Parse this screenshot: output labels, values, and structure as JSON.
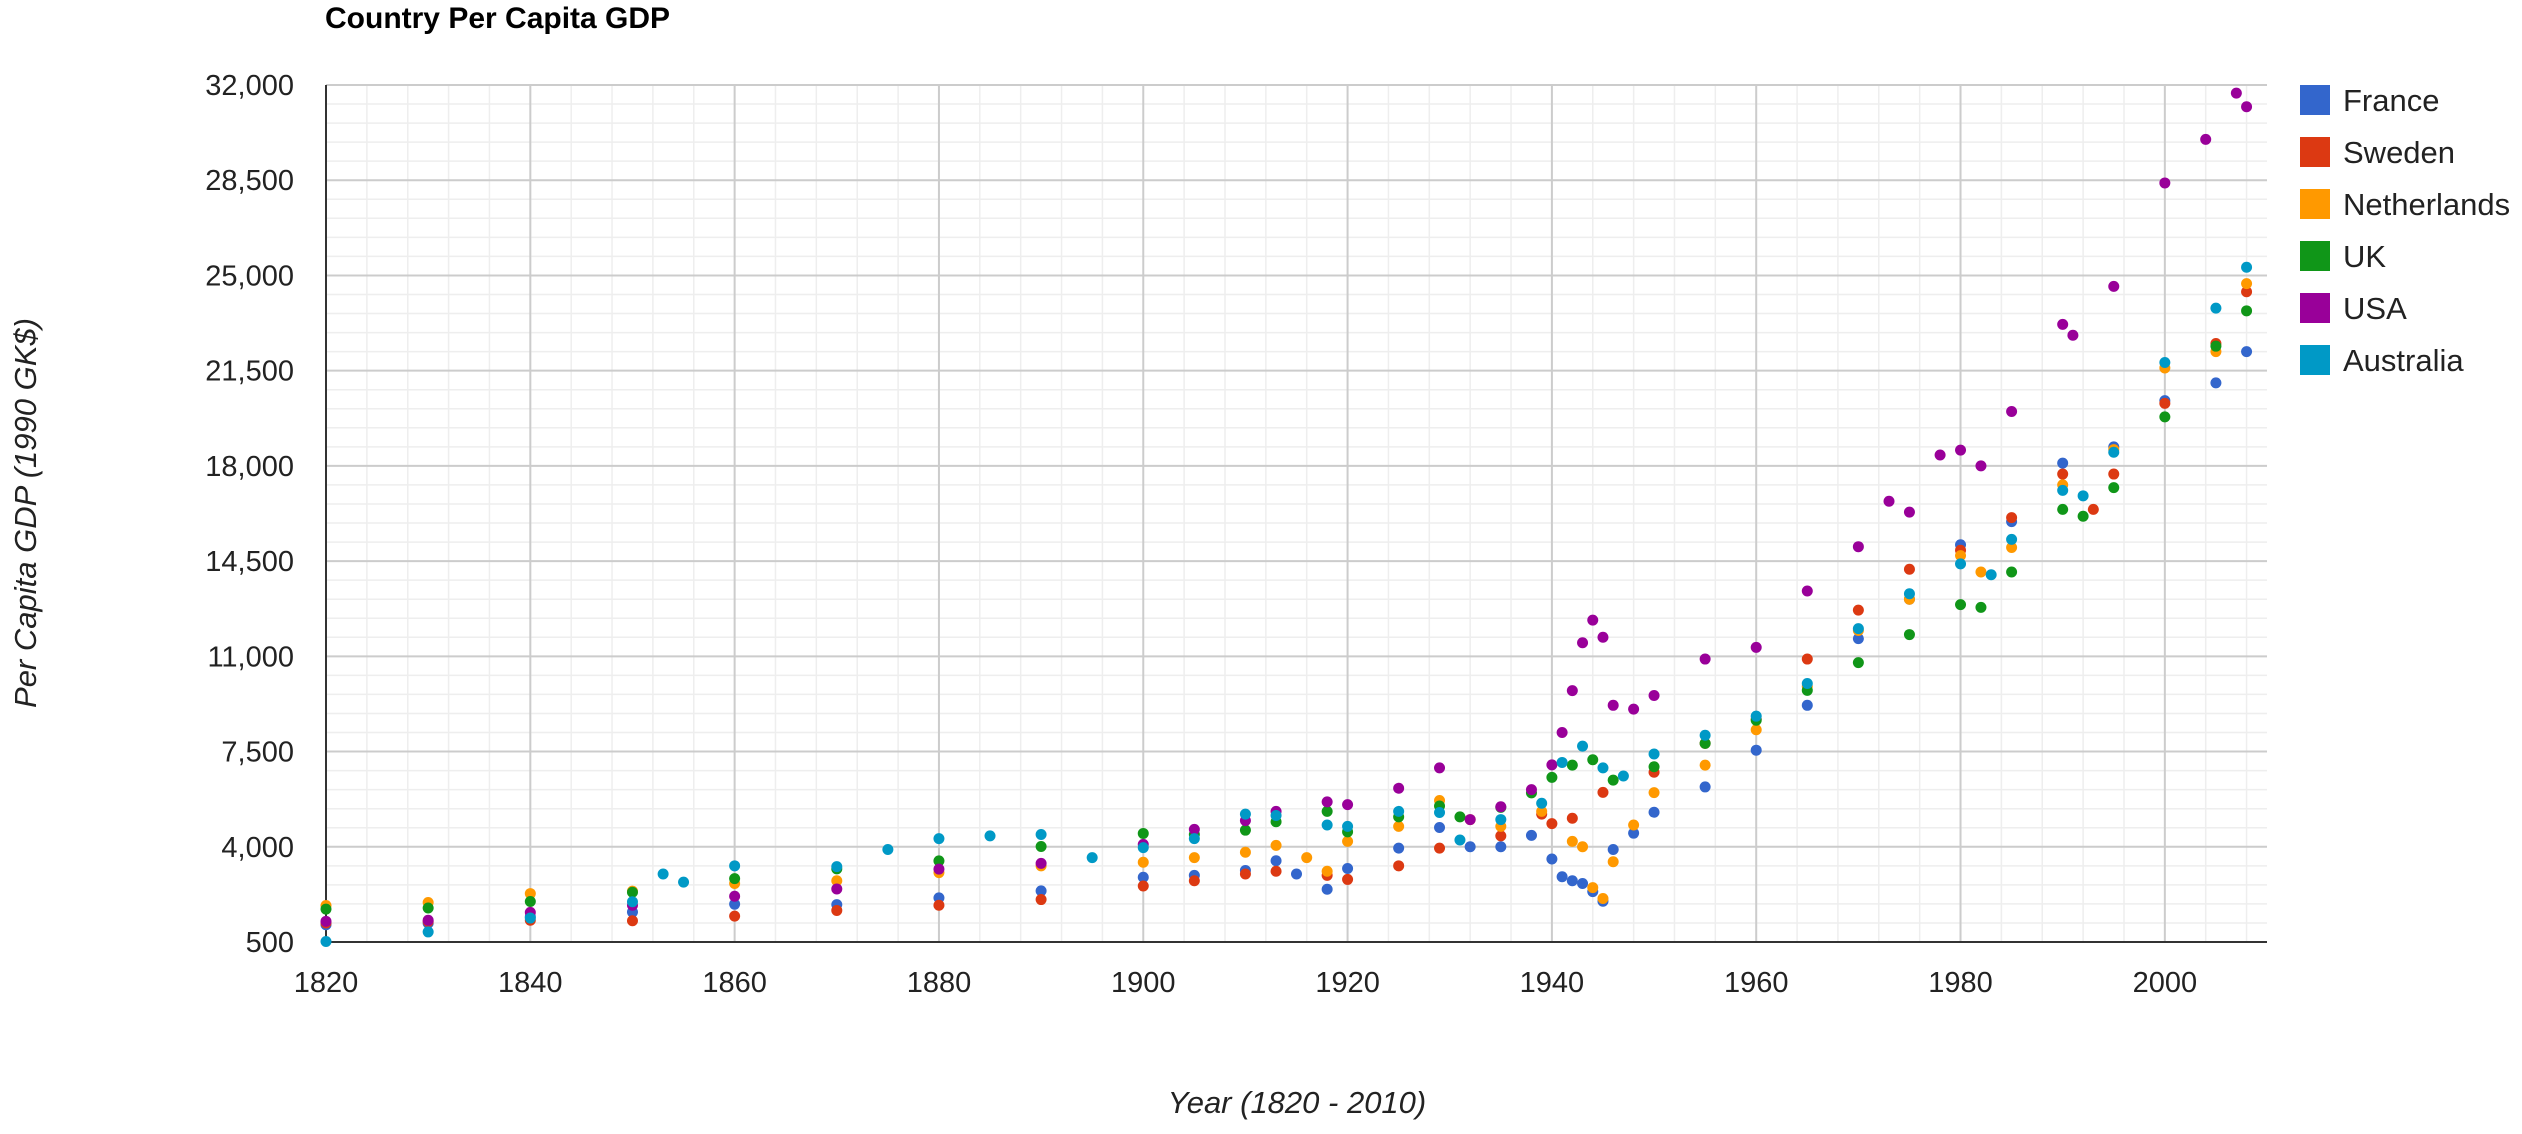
{
  "chart_data": {
    "type": "scatter",
    "title": "Country Per Capita GDP",
    "xlabel": "Year (1820 - 2010)",
    "ylabel": "Per Capita GDP (1990 GK$)",
    "xlim": [
      1820,
      2010
    ],
    "ylim": [
      500,
      32000
    ],
    "x_ticks": [
      1820,
      1840,
      1860,
      1880,
      1900,
      1920,
      1940,
      1960,
      1980,
      2000
    ],
    "y_ticks": [
      500,
      4000,
      7500,
      11000,
      14500,
      18000,
      21500,
      25000,
      28500,
      32000
    ],
    "x_tick_labels": [
      "1820",
      "1840",
      "1860",
      "1880",
      "1900",
      "1920",
      "1940",
      "1960",
      "1980",
      "2000"
    ],
    "y_tick_labels": [
      "500",
      "4,000",
      "7,500",
      "11,000",
      "14,500",
      "18,000",
      "21,500",
      "25,000",
      "28,500",
      "32,000"
    ],
    "grid": true,
    "legend_position": "right",
    "series": [
      {
        "name": "France",
        "color": "#3366cc",
        "points": [
          [
            1820,
            1135
          ],
          [
            1830,
            1190
          ],
          [
            1840,
            1430
          ],
          [
            1850,
            1600
          ],
          [
            1860,
            1890
          ],
          [
            1870,
            1875
          ],
          [
            1880,
            2120
          ],
          [
            1890,
            2380
          ],
          [
            1900,
            2880
          ],
          [
            1905,
            2950
          ],
          [
            1910,
            3130
          ],
          [
            1913,
            3485
          ],
          [
            1915,
            3000
          ],
          [
            1918,
            2440
          ],
          [
            1920,
            3200
          ],
          [
            1925,
            3950
          ],
          [
            1929,
            4710
          ],
          [
            1932,
            4000
          ],
          [
            1935,
            4000
          ],
          [
            1938,
            4420
          ],
          [
            1940,
            3550
          ],
          [
            1941,
            2900
          ],
          [
            1942,
            2750
          ],
          [
            1943,
            2650
          ],
          [
            1944,
            2350
          ],
          [
            1945,
            2000
          ],
          [
            1946,
            3900
          ],
          [
            1948,
            4500
          ],
          [
            1950,
            5270
          ],
          [
            1955,
            6200
          ],
          [
            1960,
            7550
          ],
          [
            1965,
            9200
          ],
          [
            1970,
            11650
          ],
          [
            1975,
            13100
          ],
          [
            1980,
            15100
          ],
          [
            1985,
            15950
          ],
          [
            1990,
            18100
          ],
          [
            1995,
            18700
          ],
          [
            2000,
            20400
          ],
          [
            2005,
            21050
          ],
          [
            2008,
            22200
          ]
        ]
      },
      {
        "name": "Sweden",
        "color": "#dc3912",
        "points": [
          [
            1820,
            1200
          ],
          [
            1830,
            1250
          ],
          [
            1840,
            1300
          ],
          [
            1850,
            1280
          ],
          [
            1860,
            1450
          ],
          [
            1870,
            1660
          ],
          [
            1880,
            1850
          ],
          [
            1890,
            2060
          ],
          [
            1900,
            2560
          ],
          [
            1905,
            2750
          ],
          [
            1910,
            3000
          ],
          [
            1913,
            3100
          ],
          [
            1918,
            2950
          ],
          [
            1920,
            2800
          ],
          [
            1925,
            3300
          ],
          [
            1929,
            3950
          ],
          [
            1935,
            4400
          ],
          [
            1939,
            5200
          ],
          [
            1940,
            4850
          ],
          [
            1942,
            5050
          ],
          [
            1945,
            6000
          ],
          [
            1950,
            6740
          ],
          [
            1955,
            7800
          ],
          [
            1960,
            8690
          ],
          [
            1965,
            10900
          ],
          [
            1970,
            12700
          ],
          [
            1975,
            14200
          ],
          [
            1980,
            14900
          ],
          [
            1985,
            16100
          ],
          [
            1990,
            17700
          ],
          [
            1993,
            16400
          ],
          [
            1995,
            17700
          ],
          [
            2000,
            20300
          ],
          [
            2005,
            22500
          ],
          [
            2008,
            24400
          ]
        ]
      },
      {
        "name": "Netherlands",
        "color": "#ff9900",
        "points": [
          [
            1820,
            1840
          ],
          [
            1830,
            1950
          ],
          [
            1840,
            2280
          ],
          [
            1850,
            2370
          ],
          [
            1860,
            2650
          ],
          [
            1870,
            2750
          ],
          [
            1880,
            3050
          ],
          [
            1890,
            3300
          ],
          [
            1900,
            3430
          ],
          [
            1905,
            3600
          ],
          [
            1910,
            3800
          ],
          [
            1913,
            4050
          ],
          [
            1916,
            3600
          ],
          [
            1918,
            3100
          ],
          [
            1920,
            4200
          ],
          [
            1925,
            4750
          ],
          [
            1929,
            5700
          ],
          [
            1932,
            5000
          ],
          [
            1935,
            4750
          ],
          [
            1939,
            5300
          ],
          [
            1942,
            4200
          ],
          [
            1943,
            4000
          ],
          [
            1944,
            2500
          ],
          [
            1945,
            2100
          ],
          [
            1946,
            3450
          ],
          [
            1948,
            4800
          ],
          [
            1950,
            5990
          ],
          [
            1955,
            7000
          ],
          [
            1960,
            8300
          ],
          [
            1965,
            9900
          ],
          [
            1970,
            11950
          ],
          [
            1975,
            13100
          ],
          [
            1980,
            14700
          ],
          [
            1982,
            14100
          ],
          [
            1985,
            15000
          ],
          [
            1990,
            17300
          ],
          [
            1995,
            18600
          ],
          [
            2000,
            21600
          ],
          [
            2005,
            22200
          ],
          [
            2008,
            24700
          ]
        ]
      },
      {
        "name": "UK",
        "color": "#109618",
        "points": [
          [
            1820,
            1710
          ],
          [
            1830,
            1750
          ],
          [
            1840,
            1990
          ],
          [
            1850,
            2330
          ],
          [
            1860,
            2830
          ],
          [
            1870,
            3190
          ],
          [
            1880,
            3480
          ],
          [
            1890,
            4010
          ],
          [
            1900,
            4490
          ],
          [
            1905,
            4450
          ],
          [
            1910,
            4610
          ],
          [
            1913,
            4920
          ],
          [
            1918,
            5300
          ],
          [
            1920,
            4550
          ],
          [
            1925,
            5100
          ],
          [
            1929,
            5500
          ],
          [
            1931,
            5100
          ],
          [
            1935,
            5450
          ],
          [
            1938,
            5980
          ],
          [
            1940,
            6550
          ],
          [
            1942,
            7000
          ],
          [
            1944,
            7200
          ],
          [
            1946,
            6450
          ],
          [
            1950,
            6940
          ],
          [
            1955,
            7800
          ],
          [
            1960,
            8650
          ],
          [
            1965,
            9750
          ],
          [
            1970,
            10770
          ],
          [
            1975,
            11800
          ],
          [
            1980,
            12900
          ],
          [
            1982,
            12800
          ],
          [
            1985,
            14100
          ],
          [
            1990,
            16400
          ],
          [
            1992,
            16150
          ],
          [
            1995,
            17200
          ],
          [
            2000,
            19800
          ],
          [
            2005,
            22400
          ],
          [
            2008,
            23700
          ]
        ]
      },
      {
        "name": "USA",
        "color": "#990099",
        "points": [
          [
            1820,
            1260
          ],
          [
            1830,
            1300
          ],
          [
            1840,
            1590
          ],
          [
            1850,
            1850
          ],
          [
            1860,
            2180
          ],
          [
            1870,
            2450
          ],
          [
            1880,
            3180
          ],
          [
            1890,
            3390
          ],
          [
            1900,
            4090
          ],
          [
            1905,
            4640
          ],
          [
            1910,
            4960
          ],
          [
            1913,
            5300
          ],
          [
            1918,
            5650
          ],
          [
            1920,
            5550
          ],
          [
            1925,
            6150
          ],
          [
            1929,
            6900
          ],
          [
            1932,
            5000
          ],
          [
            1935,
            5470
          ],
          [
            1938,
            6100
          ],
          [
            1940,
            7010
          ],
          [
            1941,
            8200
          ],
          [
            1942,
            9740
          ],
          [
            1943,
            11500
          ],
          [
            1944,
            12330
          ],
          [
            1945,
            11700
          ],
          [
            1946,
            9200
          ],
          [
            1948,
            9060
          ],
          [
            1950,
            9560
          ],
          [
            1955,
            10900
          ],
          [
            1960,
            11330
          ],
          [
            1965,
            13400
          ],
          [
            1970,
            15030
          ],
          [
            1973,
            16700
          ],
          [
            1975,
            16300
          ],
          [
            1978,
            18400
          ],
          [
            1980,
            18580
          ],
          [
            1982,
            18000
          ],
          [
            1985,
            20000
          ],
          [
            1990,
            23200
          ],
          [
            1991,
            22800
          ],
          [
            1995,
            24600
          ],
          [
            2000,
            28400
          ],
          [
            2004,
            30000
          ],
          [
            2007,
            31700
          ],
          [
            2008,
            31200
          ]
        ]
      },
      {
        "name": "Australia",
        "color": "#0099c6",
        "points": [
          [
            1820,
            520
          ],
          [
            1830,
            870
          ],
          [
            1840,
            1380
          ],
          [
            1850,
            1980
          ],
          [
            1853,
            3000
          ],
          [
            1855,
            2700
          ],
          [
            1860,
            3300
          ],
          [
            1870,
            3270
          ],
          [
            1875,
            3900
          ],
          [
            1880,
            4300
          ],
          [
            1885,
            4400
          ],
          [
            1890,
            4450
          ],
          [
            1895,
            3600
          ],
          [
            1900,
            3970
          ],
          [
            1905,
            4300
          ],
          [
            1910,
            5200
          ],
          [
            1913,
            5150
          ],
          [
            1918,
            4800
          ],
          [
            1920,
            4750
          ],
          [
            1925,
            5300
          ],
          [
            1929,
            5260
          ],
          [
            1931,
            4250
          ],
          [
            1935,
            5000
          ],
          [
            1939,
            5600
          ],
          [
            1941,
            7100
          ],
          [
            1943,
            7700
          ],
          [
            1945,
            6900
          ],
          [
            1947,
            6600
          ],
          [
            1950,
            7410
          ],
          [
            1955,
            8100
          ],
          [
            1960,
            8800
          ],
          [
            1965,
            10000
          ],
          [
            1970,
            12020
          ],
          [
            1975,
            13300
          ],
          [
            1980,
            14400
          ],
          [
            1983,
            14000
          ],
          [
            1985,
            15300
          ],
          [
            1990,
            17100
          ],
          [
            1992,
            16900
          ],
          [
            1995,
            18500
          ],
          [
            2000,
            21800
          ],
          [
            2005,
            23800
          ],
          [
            2008,
            25300
          ]
        ]
      }
    ]
  }
}
